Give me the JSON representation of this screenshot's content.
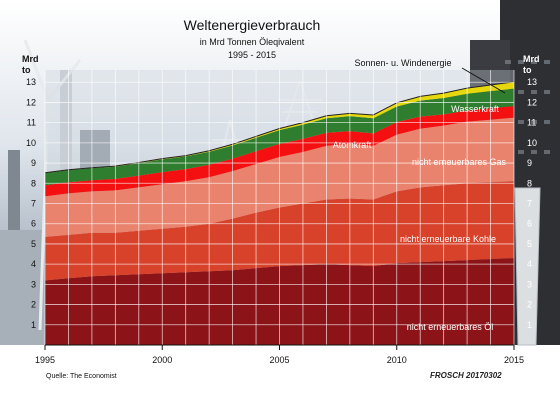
{
  "chart_data": {
    "type": "area",
    "stacked": true,
    "title": "Weltenergieverbrauch",
    "subtitle": "in Mrd Tonnen Öleqivalent",
    "subtitle2": "1995 - 2015",
    "ylabel": "Mrd to",
    "source": "Quelle: The Economist",
    "signature": "FROSCH 20170302",
    "x": [
      1995,
      1996,
      1997,
      1998,
      1999,
      2000,
      2001,
      2002,
      2003,
      2004,
      2005,
      2006,
      2007,
      2008,
      2009,
      2010,
      2011,
      2012,
      2013,
      2014,
      2015
    ],
    "x_ticks": [
      1995,
      2000,
      2005,
      2010,
      2015
    ],
    "ylim": [
      0,
      14
    ],
    "y_ticks": [
      1,
      2,
      3,
      4,
      5,
      6,
      7,
      8,
      9,
      10,
      11,
      12,
      13
    ],
    "grid": true,
    "series": [
      {
        "name": "nicht erneuerbares Öl",
        "color": "#8c1418",
        "values": [
          3.2,
          3.3,
          3.4,
          3.45,
          3.5,
          3.55,
          3.6,
          3.65,
          3.7,
          3.8,
          3.9,
          3.95,
          4.0,
          3.95,
          3.9,
          4.05,
          4.1,
          4.15,
          4.2,
          4.25,
          4.3
        ]
      },
      {
        "name": "nicht erneuerbare Kohle",
        "color": "#d8412a",
        "values": [
          2.15,
          2.15,
          2.15,
          2.1,
          2.15,
          2.2,
          2.25,
          2.35,
          2.55,
          2.75,
          2.9,
          3.05,
          3.2,
          3.3,
          3.3,
          3.55,
          3.7,
          3.75,
          3.8,
          3.8,
          3.8
        ]
      },
      {
        "name": "nicht erneuerbares Gas",
        "color": "#e9836e",
        "values": [
          2.0,
          2.05,
          2.05,
          2.1,
          2.15,
          2.2,
          2.25,
          2.3,
          2.35,
          2.4,
          2.5,
          2.55,
          2.65,
          2.7,
          2.65,
          2.8,
          2.9,
          2.95,
          3.05,
          3.1,
          3.15
        ]
      },
      {
        "name": "Atomkraft",
        "color": "#f41010",
        "values": [
          0.55,
          0.55,
          0.55,
          0.57,
          0.58,
          0.6,
          0.6,
          0.62,
          0.62,
          0.64,
          0.65,
          0.65,
          0.65,
          0.63,
          0.62,
          0.63,
          0.6,
          0.56,
          0.55,
          0.56,
          0.57
        ]
      },
      {
        "name": "Wasserkraft",
        "color": "#2f7d2e",
        "values": [
          0.6,
          0.6,
          0.6,
          0.6,
          0.62,
          0.63,
          0.63,
          0.64,
          0.65,
          0.66,
          0.68,
          0.7,
          0.72,
          0.74,
          0.75,
          0.77,
          0.79,
          0.81,
          0.83,
          0.85,
          0.86
        ]
      },
      {
        "name": "Sonnen- u. Windenergie",
        "color": "#e6d80c",
        "values": [
          0.02,
          0.02,
          0.02,
          0.03,
          0.03,
          0.04,
          0.04,
          0.05,
          0.06,
          0.07,
          0.08,
          0.1,
          0.12,
          0.14,
          0.16,
          0.18,
          0.21,
          0.24,
          0.28,
          0.3,
          0.34
        ]
      }
    ]
  }
}
